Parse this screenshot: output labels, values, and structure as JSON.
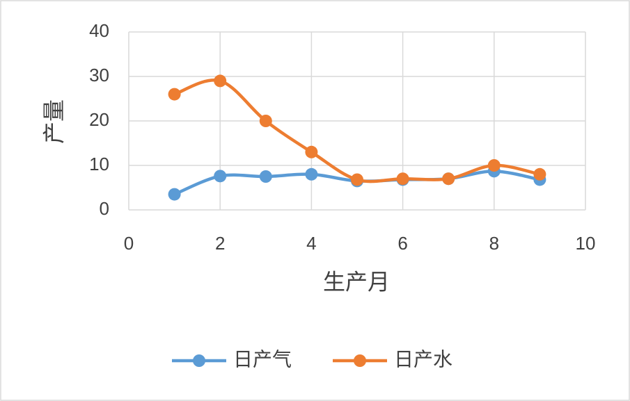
{
  "chart_data": {
    "type": "line",
    "smooth": true,
    "x_label": "生产月",
    "y_label": "产量",
    "x": [
      1,
      2,
      3,
      4,
      5,
      6,
      7,
      8,
      9
    ],
    "series": [
      {
        "name": "日产气",
        "color": "#5b9bd5",
        "values": [
          3.5,
          7.6,
          7.5,
          8,
          6.5,
          6.8,
          7,
          8.7,
          6.8
        ]
      },
      {
        "name": "日产水",
        "color": "#ed7d31",
        "values": [
          26,
          29,
          20,
          13,
          6.8,
          7,
          7,
          10,
          8
        ]
      }
    ],
    "xlim": [
      0,
      10
    ],
    "xticks": [
      0,
      2,
      4,
      6,
      8,
      10
    ],
    "ylim": [
      0,
      40
    ],
    "yticks": [
      0,
      10,
      20,
      30,
      40
    ],
    "grid": true,
    "legend": "bottom"
  }
}
